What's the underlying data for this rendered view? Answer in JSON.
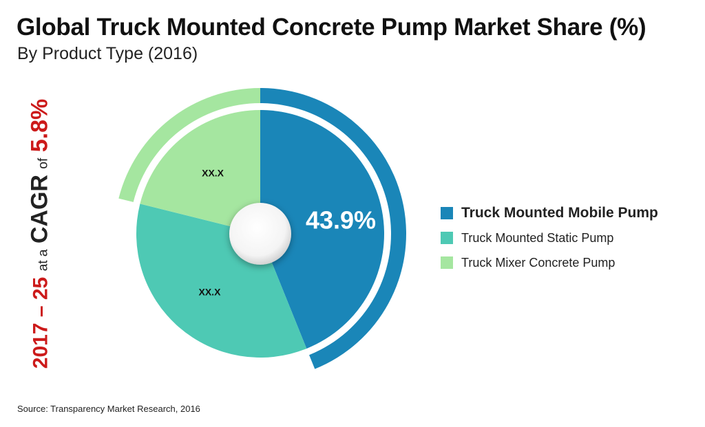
{
  "title": "Global Truck Mounted Concrete Pump Market Share (%)",
  "subtitle": "By Product Type (2016)",
  "cagr": {
    "period": "2017 – 25",
    "at_a": "at a",
    "cagr_word": "CAGR",
    "of_word": "of",
    "rate": "5.8%"
  },
  "source": "Source: Transparency Market Research, 2016",
  "colors": {
    "mobile": "#1a86b8",
    "static": "#4ec9b4",
    "mixer": "#a5e6a0",
    "accent": "#cc1a1a"
  },
  "chart_data": {
    "type": "pie",
    "title": "Global Truck Mounted Concrete Pump Market Share (%)",
    "subtitle": "By Product Type (2016)",
    "categories": [
      "Truck Mounted Mobile Pump",
      "Truck Mounted Static Pump",
      "Truck Mixer Concrete Pump"
    ],
    "values": [
      43.9,
      35.0,
      21.1
    ],
    "labels": [
      "43.9%",
      "XX.X",
      "XX.X"
    ],
    "legend_position": "right",
    "highlighted": "Truck Mounted Mobile Pump"
  }
}
